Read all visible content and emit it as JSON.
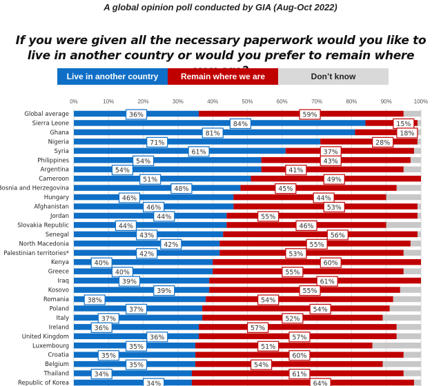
{
  "chart_data": {
    "type": "bar",
    "orientation": "horizontal",
    "stacked": true,
    "subtitle": "A global opinion poll conducted by GIA (Aug-Oct 2022)",
    "title": "If you were given all the necessary paperwork would you like to live in another country or would you prefer to remain where you are?",
    "xlabel": "",
    "ylabel": "",
    "xlim": [
      0,
      100
    ],
    "x_ticks": [
      "0%",
      "10%",
      "20%",
      "30%",
      "40%",
      "50%",
      "60%",
      "70%",
      "80%",
      "90%",
      "100%"
    ],
    "grid": true,
    "legend_position": "top",
    "colors": {
      "live": "#0f6fc6",
      "remain": "#c00000",
      "dontknow": "#c8c8c8"
    },
    "categories": [
      "Global average",
      "Sierra Leone",
      "Ghana",
      "Nigeria",
      "Syria",
      "Philippines",
      "Argentina",
      "Cameroon",
      "Bosnia and Herzegovina",
      "Hungary",
      "Afghanistan",
      "Jordan",
      "Slovakia Republic",
      "Senegal",
      "North Macedonia",
      "Palestinian territories*",
      "Kenya",
      "Greece",
      "Iraq",
      "Kosovo",
      "Romania",
      "Poland",
      "Italy",
      "Ireland",
      "United Kingdom",
      "Luxembourg",
      "Croatia",
      "Belgium",
      "Thailand",
      "Republic of Korea"
    ],
    "series": [
      {
        "name": "Live in another country",
        "key": "live",
        "values": [
          36,
          84,
          81,
          71,
          61,
          54,
          54,
          51,
          48,
          46,
          46,
          44,
          44,
          43,
          42,
          42,
          40,
          40,
          39,
          39,
          38,
          37,
          37,
          36,
          36,
          35,
          35,
          35,
          34,
          34
        ]
      },
      {
        "name": "Remain where we are",
        "key": "remain",
        "values": [
          59,
          15,
          18,
          28,
          37,
          43,
          41,
          49,
          45,
          44,
          53,
          55,
          46,
          56,
          55,
          53,
          60,
          55,
          61,
          55,
          54,
          54,
          52,
          57,
          57,
          51,
          60,
          54,
          61,
          64
        ]
      },
      {
        "name": "Don’t know",
        "key": "dontknow",
        "values": [
          5,
          1,
          1,
          1,
          2,
          3,
          5,
          0,
          7,
          10,
          1,
          1,
          10,
          1,
          3,
          5,
          0,
          5,
          0,
          6,
          8,
          9,
          11,
          7,
          7,
          14,
          5,
          11,
          5,
          2
        ]
      }
    ],
    "label_positions": {
      "live": [
        18,
        48,
        40,
        24,
        36,
        20,
        14,
        22,
        31,
        16,
        23,
        26,
        15,
        21,
        28,
        21,
        8,
        14,
        16,
        26,
        6,
        18,
        10,
        8,
        24,
        18,
        10,
        18,
        8,
        23
      ],
      "remain": [
        68,
        95,
        96,
        89,
        74,
        74,
        64,
        75,
        61,
        72,
        75,
        56,
        67,
        76,
        70,
        64,
        74,
        63,
        73,
        68,
        56,
        71,
        63,
        53,
        65,
        56,
        65,
        54,
        65,
        71
      ]
    }
  }
}
